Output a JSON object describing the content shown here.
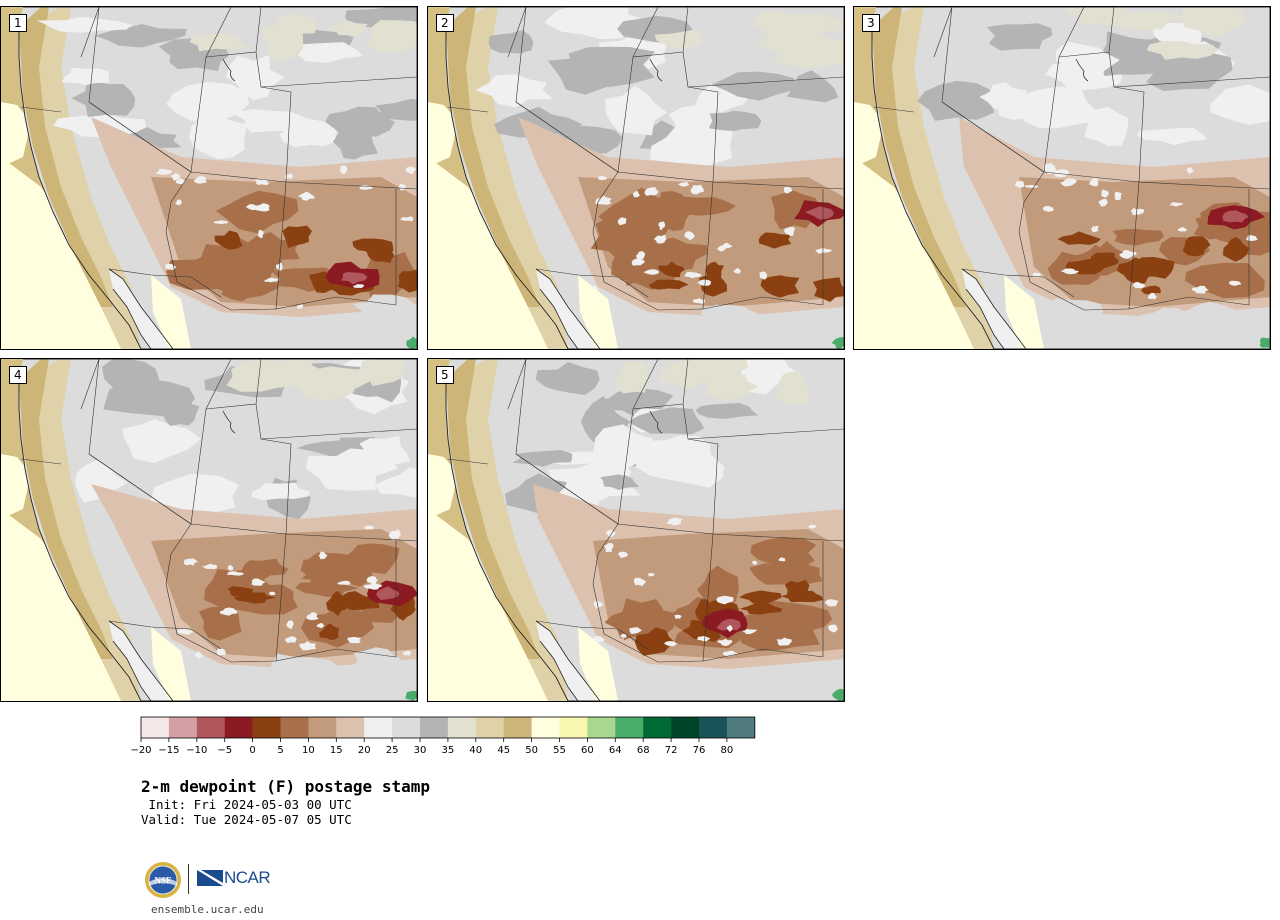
{
  "panels": [
    {
      "label": "1",
      "variant": 0
    },
    {
      "label": "2",
      "variant": 1
    },
    {
      "label": "3",
      "variant": 2
    },
    {
      "label": "4",
      "variant": 3
    },
    {
      "label": "5",
      "variant": 4
    }
  ],
  "colorbar": {
    "tick_labels": [
      "−20",
      "−15",
      "−10",
      "−5",
      "0",
      "5",
      "10",
      "15",
      "20",
      "25",
      "30",
      "35",
      "40",
      "45",
      "50",
      "55",
      "60",
      "64",
      "68",
      "72",
      "76",
      "80"
    ],
    "colors": [
      "#f5e6e8",
      "#d4a0a6",
      "#b0575e",
      "#8b1a22",
      "#8a4010",
      "#a8704a",
      "#c29a7c",
      "#dcc2ae",
      "#f0f0f0",
      "#dcdcdc",
      "#b4b4b4",
      "#e2e0d0",
      "#e0d2a8",
      "#cdb578",
      "#ffffe0",
      "#f8f8b0",
      "#a8d890",
      "#4aac6a",
      "#006a36",
      "#00452a",
      "#1a5458",
      "#507c80"
    ]
  },
  "title": "2-m dewpoint (F) postage stamp",
  "init": " Init: Fri 2024-05-03 00 UTC",
  "valid": "Valid: Tue 2024-05-07 05 UTC",
  "logos": {
    "nsf": "NSF",
    "ncar": "NCAR"
  },
  "website": "ensemble.ucar.edu"
}
